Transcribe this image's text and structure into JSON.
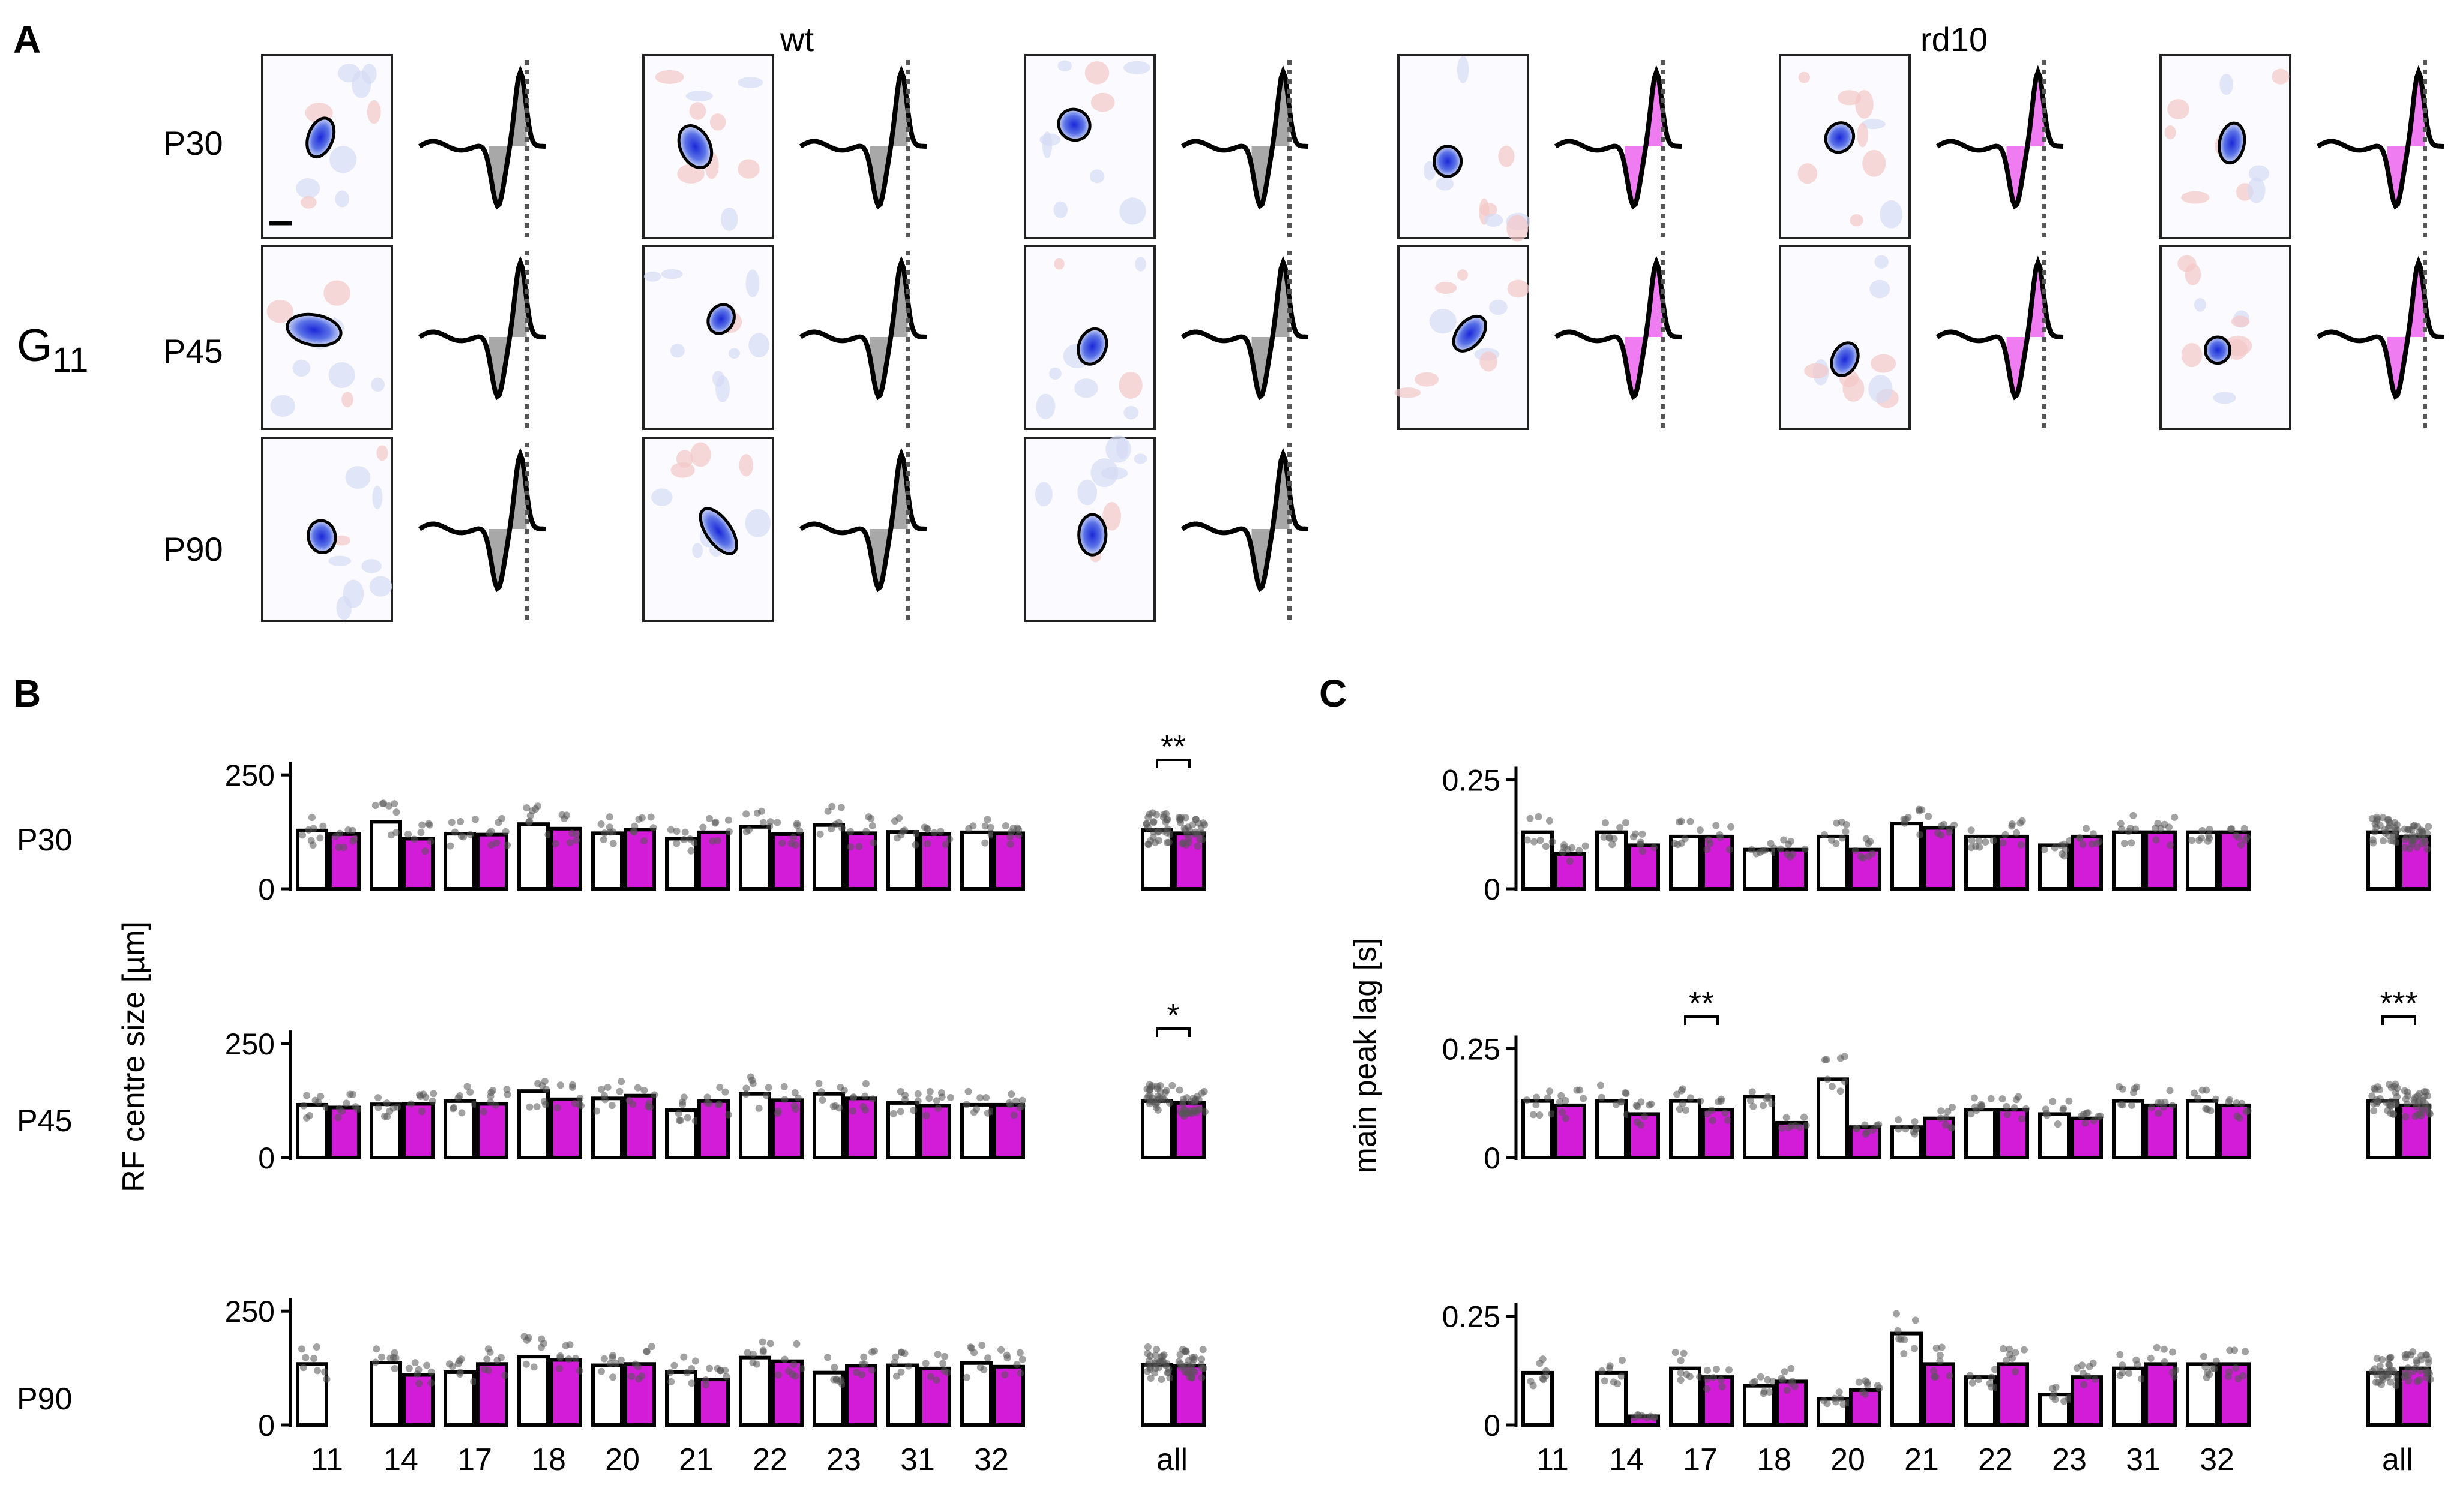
{
  "panels": {
    "A": {
      "letter": "A",
      "group_label": "wt",
      "group_label_2": "rd10",
      "cell_type": "G",
      "cell_type_sub": "11",
      "row_labels": [
        "P30",
        "P45",
        "P90"
      ],
      "cells": [
        [
          {
            "g": "wt",
            "rx": 0.1,
            "ry": 0.2,
            "ang": 20,
            "ox": 0.45,
            "oy": 0.45
          },
          {
            "g": "wt",
            "rx": 0.12,
            "ry": 0.22,
            "ang": -25,
            "ox": 0.4,
            "oy": 0.5
          },
          {
            "g": "wt",
            "rx": 0.13,
            "ry": 0.15,
            "ang": 40,
            "ox": 0.38,
            "oy": 0.38
          },
          {
            "g": "rd10",
            "rx": 0.11,
            "ry": 0.15,
            "ang": 0,
            "ox": 0.38,
            "oy": 0.58
          },
          {
            "g": "rd10",
            "rx": 0.11,
            "ry": 0.15,
            "ang": 30,
            "ox": 0.46,
            "oy": 0.45
          },
          {
            "g": "rd10",
            "rx": 0.1,
            "ry": 0.2,
            "ang": 10,
            "ox": 0.55,
            "oy": 0.48
          }
        ],
        [
          {
            "g": "wt",
            "rx": 0.22,
            "ry": 0.15,
            "ang": 10,
            "ox": 0.4,
            "oy": 0.46
          },
          {
            "g": "wt",
            "rx": 0.1,
            "ry": 0.15,
            "ang": 30,
            "ox": 0.6,
            "oy": 0.4
          },
          {
            "g": "wt",
            "rx": 0.11,
            "ry": 0.18,
            "ang": 20,
            "ox": 0.52,
            "oy": 0.55
          },
          {
            "g": "rd10",
            "rx": 0.1,
            "ry": 0.2,
            "ang": 40,
            "ox": 0.55,
            "oy": 0.48
          },
          {
            "g": "rd10",
            "rx": 0.1,
            "ry": 0.17,
            "ang": 25,
            "ox": 0.5,
            "oy": 0.62
          },
          {
            "g": "rd10",
            "rx": 0.1,
            "ry": 0.13,
            "ang": 0,
            "ox": 0.44,
            "oy": 0.57
          }
        ],
        [
          {
            "g": "wt",
            "rx": 0.11,
            "ry": 0.16,
            "ang": -10,
            "ox": 0.46,
            "oy": 0.54
          },
          {
            "g": "wt",
            "rx": 0.1,
            "ry": 0.26,
            "ang": -35,
            "ox": 0.58,
            "oy": 0.51
          },
          {
            "g": "wt",
            "rx": 0.11,
            "ry": 0.2,
            "ang": 0,
            "ox": 0.52,
            "oy": 0.53
          }
        ]
      ]
    },
    "B": {
      "letter": "B",
      "ylabel": "RF centre size [µm]",
      "row_labels": [
        "P30",
        "P45",
        "P90"
      ]
    },
    "C": {
      "letter": "C",
      "ylabel": "main peak lag [s]",
      "row_labels": [
        "",
        "",
        ""
      ]
    }
  },
  "colors": {
    "wt": "#ffffff",
    "rd10": "#d21cd8",
    "rd10_light": "#f07cf2",
    "wt_fill": "#a8a8a8",
    "points": "#555555",
    "center": "#1a28d8",
    "axis": "#000000"
  },
  "chart_data": [
    {
      "type": "bar",
      "title": "",
      "xlabel": "",
      "ylabel": "RF centre size [µm]",
      "row": "P30",
      "categories": [
        "11",
        "14",
        "17",
        "18",
        "20",
        "21",
        "22",
        "23",
        "31",
        "32",
        "all"
      ],
      "yticks": [
        0,
        250
      ],
      "ytick_labels": [
        "0",
        "250"
      ],
      "ylim": [
        0,
        270
      ],
      "grid": false,
      "significance": [
        {
          "category": "all",
          "label": "**"
        }
      ],
      "series": [
        {
          "name": "wt",
          "values": [
            128,
            147,
            121,
            142,
            122,
            110,
            136,
            140,
            125,
            124,
            129
          ]
        },
        {
          "name": "rd10",
          "values": [
            120,
            110,
            119,
            132,
            130,
            124,
            120,
            122,
            120,
            122,
            122
          ]
        }
      ]
    },
    {
      "type": "bar",
      "title": "",
      "xlabel": "",
      "ylabel": "RF centre size [µm]",
      "row": "P45",
      "categories": [
        "11",
        "14",
        "17",
        "18",
        "20",
        "21",
        "22",
        "23",
        "31",
        "32",
        "all"
      ],
      "yticks": [
        0,
        250
      ],
      "ytick_labels": [
        "0",
        "250"
      ],
      "ylim": [
        0,
        270
      ],
      "grid": false,
      "significance": [
        {
          "category": "all",
          "label": "*"
        }
      ],
      "series": [
        {
          "name": "wt",
          "values": [
            116,
            117,
            124,
            146,
            130,
            104,
            140,
            140,
            120,
            116,
            124
          ]
        },
        {
          "name": "rd10",
          "values": [
            110,
            118,
            118,
            128,
            136,
            124,
            126,
            130,
            114,
            116,
            120
          ]
        }
      ]
    },
    {
      "type": "bar",
      "title": "",
      "xlabel": "",
      "ylabel": "RF centre size [µm]",
      "row": "P90",
      "categories": [
        "11",
        "14",
        "17",
        "18",
        "20",
        "21",
        "22",
        "23",
        "31",
        "32",
        "all"
      ],
      "yticks": [
        0,
        250
      ],
      "ytick_labels": [
        "0",
        "250"
      ],
      "ylim": [
        0,
        270
      ],
      "grid": false,
      "significance": [],
      "series": [
        {
          "name": "wt",
          "values": [
            134,
            137,
            116,
            150,
            131,
            116,
            148,
            115,
            131,
            136,
            132
          ]
        },
        {
          "name": "rd10",
          "values": [
            null,
            110,
            134,
            143,
            134,
            100,
            140,
            130,
            124,
            128,
            130
          ]
        }
      ]
    },
    {
      "type": "bar",
      "title": "",
      "xlabel": "",
      "ylabel": "main peak lag [s]",
      "row": "P30",
      "categories": [
        "11",
        "14",
        "17",
        "18",
        "20",
        "21",
        "22",
        "23",
        "31",
        "32",
        "all"
      ],
      "yticks": [
        0,
        0.25
      ],
      "ytick_labels": [
        "0",
        "0.25"
      ],
      "ylim": [
        0,
        0.31
      ],
      "grid": false,
      "significance": [],
      "series": [
        {
          "name": "wt",
          "values": [
            0.13,
            0.13,
            0.12,
            0.09,
            0.12,
            0.15,
            0.12,
            0.1,
            0.13,
            0.13,
            0.13
          ]
        },
        {
          "name": "rd10",
          "values": [
            0.08,
            0.1,
            0.12,
            0.09,
            0.09,
            0.14,
            0.12,
            0.12,
            0.13,
            0.13,
            0.12
          ]
        }
      ]
    },
    {
      "type": "bar",
      "title": "",
      "xlabel": "",
      "ylabel": "main peak lag [s]",
      "row": "P45",
      "categories": [
        "11",
        "14",
        "17",
        "18",
        "20",
        "21",
        "22",
        "23",
        "31",
        "32",
        "all"
      ],
      "yticks": [
        0,
        0.25
      ],
      "ytick_labels": [
        "0",
        "0.25"
      ],
      "ylim": [
        0,
        0.31
      ],
      "grid": false,
      "significance": [
        {
          "category": "17",
          "label": "**"
        },
        {
          "category": "all",
          "label": "***"
        }
      ],
      "series": [
        {
          "name": "wt",
          "values": [
            0.13,
            0.13,
            0.13,
            0.14,
            0.18,
            0.07,
            0.11,
            0.1,
            0.13,
            0.13,
            0.13
          ]
        },
        {
          "name": "rd10",
          "values": [
            0.12,
            0.1,
            0.11,
            0.08,
            0.07,
            0.09,
            0.11,
            0.09,
            0.12,
            0.12,
            0.12
          ]
        }
      ]
    },
    {
      "type": "bar",
      "title": "",
      "xlabel": "",
      "ylabel": "main peak lag [s]",
      "row": "P90",
      "categories": [
        "11",
        "14",
        "17",
        "18",
        "20",
        "21",
        "22",
        "23",
        "31",
        "32",
        "all"
      ],
      "yticks": [
        0,
        0.25
      ],
      "ytick_labels": [
        "0",
        "0.25"
      ],
      "ylim": [
        0,
        0.31
      ],
      "grid": false,
      "significance": [],
      "series": [
        {
          "name": "wt",
          "values": [
            0.12,
            0.12,
            0.13,
            0.09,
            0.06,
            0.21,
            0.11,
            0.07,
            0.13,
            0.14,
            0.12
          ]
        },
        {
          "name": "rd10",
          "values": [
            null,
            0.02,
            0.11,
            0.1,
            0.08,
            0.14,
            0.14,
            0.11,
            0.14,
            0.14,
            0.13
          ]
        }
      ]
    }
  ]
}
